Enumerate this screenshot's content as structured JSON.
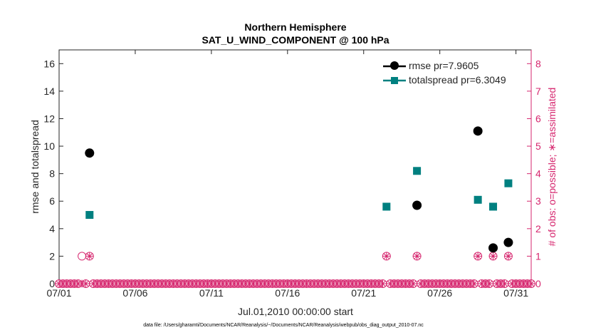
{
  "chart_data": {
    "type": "scatter",
    "title": "Northern Hemisphere",
    "subtitle": "SAT_U_WIND_COMPONENT @ 100 hPa",
    "xlabel": "Jul.01,2010 00:00:00 start",
    "ylabel": "rmse and totalspread",
    "ylabel_right": "# of obs: o=possible; ∗=assimilated",
    "footnote": "data file: /Users/gharamti/Documents/NCAR/Reanalysis/~/Documents/NCAR/Reanalysis/webpub/obs_diag_output_2010-07.nc",
    "xlim": [
      1,
      32
    ],
    "ylim": [
      0,
      17
    ],
    "ylim_right": [
      0,
      8.5
    ],
    "xticks": [
      {
        "day": 1,
        "label": "07/01"
      },
      {
        "day": 6,
        "label": "07/06"
      },
      {
        "day": 11,
        "label": "07/11"
      },
      {
        "day": 16,
        "label": "07/16"
      },
      {
        "day": 21,
        "label": "07/21"
      },
      {
        "day": 26,
        "label": "07/26"
      },
      {
        "day": 31,
        "label": "07/31"
      }
    ],
    "yticks": [
      0,
      2,
      4,
      6,
      8,
      10,
      12,
      14,
      16
    ],
    "yticks_right": [
      0,
      1,
      2,
      3,
      4,
      5,
      6,
      7,
      8
    ],
    "legend_position": "top-right",
    "colors": {
      "rmse": "#000000",
      "totalspread": "#008080",
      "obs": "#d6266e",
      "axis": "#262626"
    },
    "series": [
      {
        "name": "rmse",
        "legend": "rmse pr=7.9605",
        "marker": "circle",
        "points": [
          {
            "x": 3.0,
            "y": 9.5
          },
          {
            "x": 24.5,
            "y": 5.7
          },
          {
            "x": 28.5,
            "y": 11.1
          },
          {
            "x": 29.5,
            "y": 2.6
          },
          {
            "x": 30.5,
            "y": 3.0
          }
        ]
      },
      {
        "name": "totalspread",
        "legend": "totalspread pr=6.3049",
        "marker": "square",
        "points": [
          {
            "x": 3.0,
            "y": 5.0
          },
          {
            "x": 22.5,
            "y": 5.6
          },
          {
            "x": 24.5,
            "y": 8.2
          },
          {
            "x": 28.5,
            "y": 6.1
          },
          {
            "x": 29.5,
            "y": 5.6
          },
          {
            "x": 30.5,
            "y": 7.3
          }
        ]
      }
    ],
    "obs_counts": {
      "start_day": 1.0,
      "step_days": 0.25,
      "steps": 125,
      "nonzero_possible": [
        {
          "x": 2.5,
          "count": 1
        },
        {
          "x": 3.0,
          "count": 1
        },
        {
          "x": 22.5,
          "count": 1
        },
        {
          "x": 24.5,
          "count": 1
        },
        {
          "x": 28.5,
          "count": 1
        },
        {
          "x": 29.5,
          "count": 1
        },
        {
          "x": 30.5,
          "count": 1
        }
      ],
      "nonzero_assimilated": [
        {
          "x": 3.0,
          "count": 1
        },
        {
          "x": 22.5,
          "count": 1
        },
        {
          "x": 24.5,
          "count": 1
        },
        {
          "x": 28.5,
          "count": 1
        },
        {
          "x": 29.5,
          "count": 1
        },
        {
          "x": 30.5,
          "count": 1
        }
      ]
    }
  }
}
